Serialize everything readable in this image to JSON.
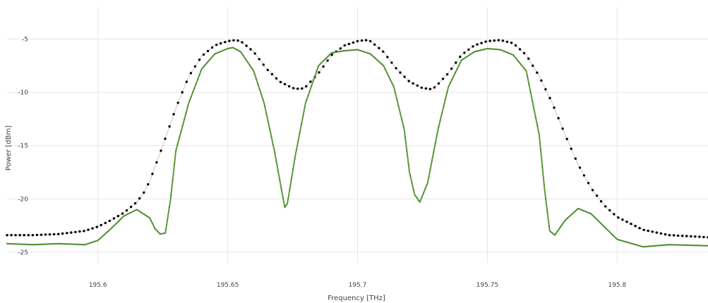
{
  "chart_data": {
    "type": "line",
    "xlabel": "Frequency [THz]",
    "ylabel": "Power [dBm]",
    "xlim": [
      195.565,
      195.835
    ],
    "ylim": [
      -26,
      -2
    ],
    "xticks": [
      195.6,
      195.65,
      195.7,
      195.75,
      195.8
    ],
    "xtick_labels": [
      "195.6",
      "195.65",
      "195.7",
      "195.75",
      "195.8"
    ],
    "yticks": [
      -25,
      -20,
      -15,
      -10,
      -5
    ],
    "ytick_labels": [
      "-25",
      "-20",
      "-15",
      "-10",
      "-5"
    ],
    "grid": true,
    "legend": "none",
    "series": [
      {
        "color": "#000000",
        "style": "dotted",
        "x": [
          195.565,
          195.575,
          195.585,
          195.595,
          195.6,
          195.605,
          195.61,
          195.615,
          195.618,
          195.62,
          195.625,
          195.63,
          195.635,
          195.64,
          195.645,
          195.65,
          195.653,
          195.655,
          195.66,
          195.665,
          195.67,
          195.675,
          195.678,
          195.68,
          195.685,
          195.69,
          195.695,
          195.7,
          195.703,
          195.705,
          195.71,
          195.715,
          195.72,
          195.725,
          195.728,
          195.73,
          195.735,
          195.74,
          195.745,
          195.75,
          195.755,
          195.76,
          195.765,
          195.77,
          195.775,
          195.78,
          195.785,
          195.79,
          195.795,
          195.8,
          195.81,
          195.82,
          195.835
        ],
        "y": [
          -23.4,
          -23.4,
          -23.3,
          -23.0,
          -22.6,
          -22.0,
          -21.3,
          -20.3,
          -19.3,
          -18.3,
          -15.0,
          -11.5,
          -8.5,
          -6.6,
          -5.6,
          -5.2,
          -5.1,
          -5.2,
          -6.2,
          -7.8,
          -9.0,
          -9.6,
          -9.7,
          -9.5,
          -8.2,
          -6.5,
          -5.6,
          -5.2,
          -5.1,
          -5.2,
          -6.2,
          -7.8,
          -9.0,
          -9.6,
          -9.7,
          -9.5,
          -8.2,
          -6.5,
          -5.6,
          -5.2,
          -5.1,
          -5.4,
          -6.5,
          -8.5,
          -11.0,
          -14.0,
          -16.8,
          -19.0,
          -20.6,
          -21.7,
          -22.9,
          -23.4,
          -23.6
        ]
      },
      {
        "color": "#5d9a3d",
        "style": "solid",
        "x": [
          195.565,
          195.575,
          195.585,
          195.595,
          195.6,
          195.605,
          195.61,
          195.615,
          195.62,
          195.622,
          195.624,
          195.626,
          195.628,
          195.63,
          195.635,
          195.64,
          195.645,
          195.65,
          195.652,
          195.655,
          195.66,
          195.664,
          195.668,
          195.671,
          195.672,
          195.673,
          195.676,
          195.68,
          195.685,
          195.69,
          195.695,
          195.7,
          195.705,
          195.71,
          195.714,
          195.718,
          195.72,
          195.722,
          195.724,
          195.727,
          195.731,
          195.735,
          195.74,
          195.745,
          195.75,
          195.755,
          195.76,
          195.765,
          195.77,
          195.772,
          195.774,
          195.776,
          195.78,
          195.785,
          195.79,
          195.795,
          195.8,
          195.81,
          195.82,
          195.835
        ],
        "y": [
          -24.2,
          -24.3,
          -24.2,
          -24.3,
          -23.9,
          -22.8,
          -21.6,
          -21.0,
          -21.8,
          -22.8,
          -23.3,
          -23.2,
          -20.0,
          -15.5,
          -11.0,
          -7.8,
          -6.4,
          -5.9,
          -5.8,
          -6.2,
          -8.0,
          -11.0,
          -15.5,
          -19.5,
          -20.8,
          -20.4,
          -16.0,
          -11.0,
          -7.5,
          -6.3,
          -6.1,
          -6.0,
          -6.4,
          -7.5,
          -9.5,
          -13.5,
          -17.5,
          -19.6,
          -20.3,
          -18.5,
          -13.5,
          -9.5,
          -7.0,
          -6.2,
          -5.9,
          -6.0,
          -6.5,
          -8.0,
          -14.0,
          -19.0,
          -23.0,
          -23.4,
          -22.0,
          -20.9,
          -21.4,
          -22.6,
          -23.8,
          -24.5,
          -24.3,
          -24.4
        ]
      }
    ]
  }
}
